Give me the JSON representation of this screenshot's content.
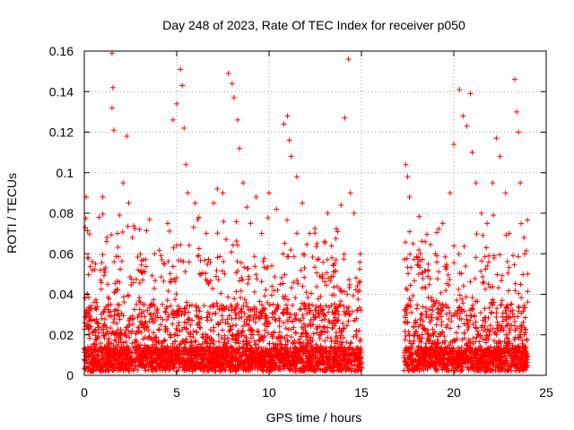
{
  "chart_data": {
    "type": "scatter",
    "title": "Day 248 of 2023, Rate Of TEC Index for receiver p050",
    "xlabel": "GPS time / hours",
    "ylabel": "ROTI / TECUs",
    "xlim": [
      0,
      25
    ],
    "ylim": [
      0,
      0.16
    ],
    "xticks": [
      "0",
      "5",
      "10",
      "15",
      "20",
      "25"
    ],
    "yticks": [
      "0",
      "0.02",
      "0.04",
      "0.06",
      "0.08",
      "0.1",
      "0.12",
      "0.14",
      "0.16"
    ],
    "grid": true,
    "marker": "plus",
    "series": [
      {
        "name": "ROTI",
        "color": "#ff0000",
        "x_ranges": [
          [
            0,
            15
          ],
          [
            17.3,
            24
          ]
        ],
        "points": [
          [
            0.05,
            0.073
          ],
          [
            0.1,
            0.088
          ],
          [
            0.05,
            0.029
          ],
          [
            0.6,
            0.055
          ],
          [
            0.8,
            0.078
          ],
          [
            1.0,
            0.088
          ],
          [
            1.2,
            0.066
          ],
          [
            1.5,
            0.159
          ],
          [
            1.55,
            0.142
          ],
          [
            1.5,
            0.132
          ],
          [
            1.6,
            0.121
          ],
          [
            1.8,
            0.07
          ],
          [
            2.1,
            0.095
          ],
          [
            2.3,
            0.118
          ],
          [
            2.4,
            0.085
          ],
          [
            2.6,
            0.068
          ],
          [
            3.0,
            0.072
          ],
          [
            3.2,
            0.057
          ],
          [
            3.8,
            0.06
          ],
          [
            4.2,
            0.057
          ],
          [
            4.8,
            0.126
          ],
          [
            5.0,
            0.134
          ],
          [
            5.2,
            0.151
          ],
          [
            5.3,
            0.143
          ],
          [
            5.4,
            0.122
          ],
          [
            5.5,
            0.104
          ],
          [
            5.6,
            0.09
          ],
          [
            6.0,
            0.085
          ],
          [
            6.2,
            0.078
          ],
          [
            6.6,
            0.07
          ],
          [
            7.0,
            0.085
          ],
          [
            7.2,
            0.092
          ],
          [
            7.5,
            0.09
          ],
          [
            7.8,
            0.149
          ],
          [
            8.0,
            0.144
          ],
          [
            8.1,
            0.137
          ],
          [
            8.3,
            0.126
          ],
          [
            8.4,
            0.112
          ],
          [
            8.6,
            0.095
          ],
          [
            8.8,
            0.083
          ],
          [
            9.0,
            0.075
          ],
          [
            9.3,
            0.088
          ],
          [
            9.6,
            0.07
          ],
          [
            10.0,
            0.09
          ],
          [
            10.4,
            0.082
          ],
          [
            10.8,
            0.124
          ],
          [
            11.0,
            0.128
          ],
          [
            11.1,
            0.116
          ],
          [
            11.2,
            0.108
          ],
          [
            11.5,
            0.098
          ],
          [
            11.8,
            0.085
          ],
          [
            12.2,
            0.07
          ],
          [
            12.6,
            0.065
          ],
          [
            13.0,
            0.066
          ],
          [
            13.4,
            0.058
          ],
          [
            13.9,
            0.084
          ],
          [
            14.1,
            0.127
          ],
          [
            14.3,
            0.156
          ],
          [
            14.4,
            0.09
          ],
          [
            14.6,
            0.08
          ],
          [
            14.9,
            0.042
          ],
          [
            17.4,
            0.104
          ],
          [
            17.5,
            0.098
          ],
          [
            17.6,
            0.088
          ],
          [
            17.8,
            0.065
          ],
          [
            18.2,
            0.06
          ],
          [
            18.6,
            0.052
          ],
          [
            19.0,
            0.06
          ],
          [
            19.4,
            0.075
          ],
          [
            19.8,
            0.09
          ],
          [
            20.0,
            0.114
          ],
          [
            20.3,
            0.141
          ],
          [
            20.5,
            0.128
          ],
          [
            20.7,
            0.123
          ],
          [
            20.9,
            0.139
          ],
          [
            21.0,
            0.11
          ],
          [
            21.2,
            0.095
          ],
          [
            21.5,
            0.08
          ],
          [
            21.8,
            0.075
          ],
          [
            22.1,
            0.095
          ],
          [
            22.3,
            0.117
          ],
          [
            22.5,
            0.108
          ],
          [
            22.8,
            0.09
          ],
          [
            23.0,
            0.07
          ],
          [
            23.3,
            0.146
          ],
          [
            23.4,
            0.13
          ],
          [
            23.5,
            0.12
          ],
          [
            23.6,
            0.095
          ],
          [
            23.8,
            0.068
          ],
          [
            24.0,
            0.05
          ]
        ]
      }
    ]
  }
}
